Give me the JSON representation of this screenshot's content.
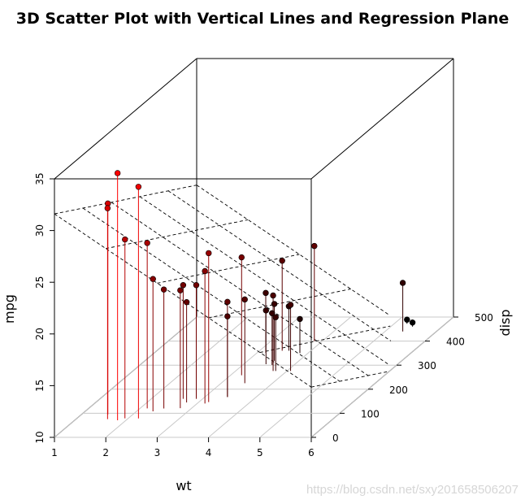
{
  "title": "3D Scatter Plot with Vertical Lines and Regression Plane",
  "watermark": "https://blog.csdn.net/sxy201658506207",
  "chart_data": {
    "type": "scatter",
    "title": "3D Scatter Plot with Vertical Lines and Regression Plane",
    "xlabel": "wt",
    "ylabel": "disp",
    "zlabel": "mpg",
    "xlim": [
      1,
      6
    ],
    "ylim": [
      0,
      500
    ],
    "zlim": [
      10,
      35
    ],
    "x_ticks": [
      "1",
      "2",
      "3",
      "4",
      "5",
      "6"
    ],
    "y_ticks": [
      "0",
      "100",
      "200",
      "300",
      "400",
      "500"
    ],
    "z_ticks": [
      "10",
      "15",
      "20",
      "25",
      "30",
      "35"
    ],
    "vertical_lines": true,
    "box": true,
    "grid": true,
    "color_scale": [
      "#ff0000",
      "#000000"
    ],
    "regression_plane": {
      "intercept": 34.96,
      "wt_coef": -3.35,
      "disp_coef": -0.0177
    },
    "points": [
      {
        "wt": 2.62,
        "disp": 160,
        "mpg": 21.0
      },
      {
        "wt": 2.875,
        "disp": 160,
        "mpg": 21.0
      },
      {
        "wt": 2.32,
        "disp": 108,
        "mpg": 22.8
      },
      {
        "wt": 3.215,
        "disp": 258,
        "mpg": 21.4
      },
      {
        "wt": 3.44,
        "disp": 360,
        "mpg": 18.7
      },
      {
        "wt": 3.46,
        "disp": 225,
        "mpg": 18.1
      },
      {
        "wt": 3.57,
        "disp": 360,
        "mpg": 14.3
      },
      {
        "wt": 3.19,
        "disp": 146.7,
        "mpg": 24.4
      },
      {
        "wt": 3.15,
        "disp": 140.8,
        "mpg": 22.8
      },
      {
        "wt": 3.44,
        "disp": 167.6,
        "mpg": 19.2
      },
      {
        "wt": 3.44,
        "disp": 167.6,
        "mpg": 17.8
      },
      {
        "wt": 4.07,
        "disp": 275.8,
        "mpg": 16.4
      },
      {
        "wt": 3.73,
        "disp": 275.8,
        "mpg": 17.3
      },
      {
        "wt": 3.78,
        "disp": 275.8,
        "mpg": 15.2
      },
      {
        "wt": 5.25,
        "disp": 472,
        "mpg": 10.4
      },
      {
        "wt": 5.424,
        "disp": 460,
        "mpg": 10.4
      },
      {
        "wt": 5.345,
        "disp": 440,
        "mpg": 14.7
      },
      {
        "wt": 2.2,
        "disp": 78.7,
        "mpg": 32.4
      },
      {
        "wt": 1.615,
        "disp": 75.7,
        "mpg": 30.4
      },
      {
        "wt": 1.835,
        "disp": 71.1,
        "mpg": 33.9
      },
      {
        "wt": 2.465,
        "disp": 120.1,
        "mpg": 21.5
      },
      {
        "wt": 3.52,
        "disp": 318,
        "mpg": 15.5
      },
      {
        "wt": 3.435,
        "disp": 304,
        "mpg": 15.2
      },
      {
        "wt": 3.84,
        "disp": 350,
        "mpg": 13.3
      },
      {
        "wt": 3.845,
        "disp": 400,
        "mpg": 19.2
      },
      {
        "wt": 1.935,
        "disp": 79,
        "mpg": 27.3
      },
      {
        "wt": 2.14,
        "disp": 120.3,
        "mpg": 26.0
      },
      {
        "wt": 1.513,
        "disp": 95.1,
        "mpg": 30.4
      },
      {
        "wt": 3.17,
        "disp": 351,
        "mpg": 15.8
      },
      {
        "wt": 2.77,
        "disp": 145,
        "mpg": 19.7
      },
      {
        "wt": 3.57,
        "disp": 301,
        "mpg": 15.0
      },
      {
        "wt": 2.78,
        "disp": 121,
        "mpg": 21.4
      }
    ]
  }
}
